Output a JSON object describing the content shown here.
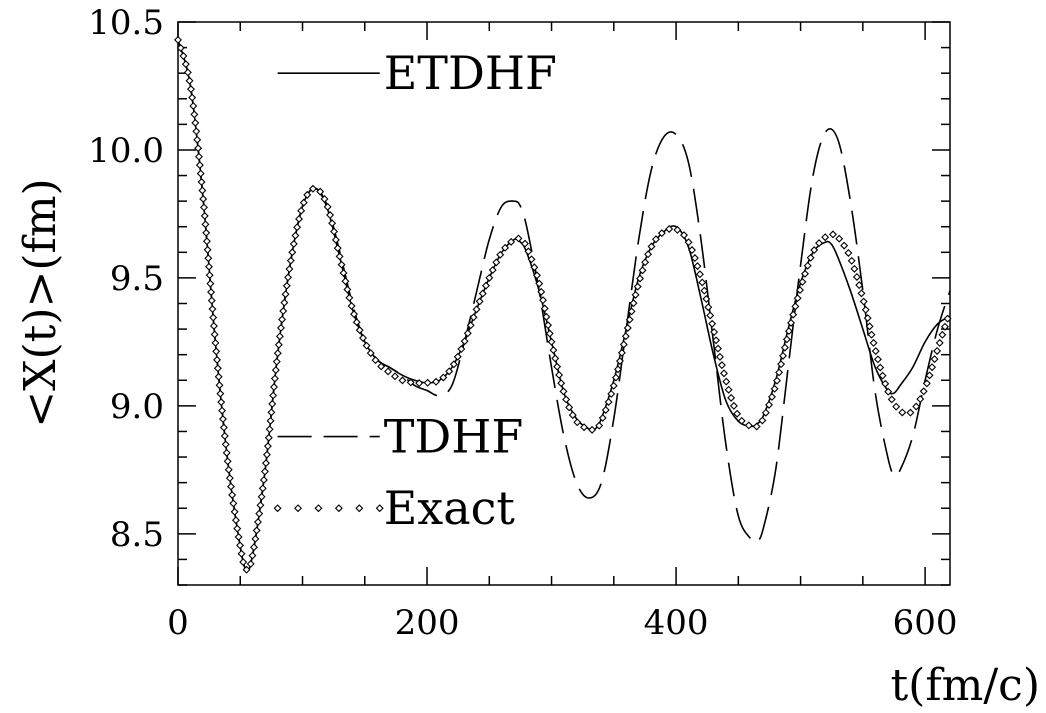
{
  "chart_data": {
    "type": "line",
    "title": "",
    "xlabel": "t(fm/c)",
    "ylabel": "<X(t)>(fm)",
    "xlim": [
      0,
      620
    ],
    "ylim": [
      8.3,
      10.5
    ],
    "xticks": [
      0,
      200,
      400,
      600
    ],
    "xtick_labels": [
      "0",
      "200",
      "400",
      "600"
    ],
    "yticks": [
      8.5,
      9.0,
      9.5,
      10.0,
      10.5
    ],
    "ytick_labels": [
      "8.5",
      "9.0",
      "9.5",
      "10.0",
      "10.5"
    ],
    "grid": false,
    "legend_position": "inside-left",
    "series": [
      {
        "name": "ETDHF",
        "style": "solid",
        "x": [
          0,
          10,
          20,
          30,
          40,
          50,
          55,
          60,
          70,
          80,
          90,
          100,
          110,
          120,
          130,
          140,
          150,
          160,
          170,
          180,
          190,
          200,
          210,
          220,
          230,
          240,
          250,
          260,
          270,
          275,
          280,
          290,
          300,
          310,
          320,
          330,
          335,
          340,
          350,
          360,
          370,
          380,
          390,
          400,
          410,
          420,
          430,
          440,
          450,
          460,
          465,
          470,
          480,
          490,
          500,
          510,
          520,
          525,
          530,
          540,
          550,
          560,
          570,
          575,
          580,
          590,
          600,
          610,
          620
        ],
        "y": [
          10.43,
          10.25,
          9.82,
          9.25,
          8.78,
          8.45,
          8.36,
          8.42,
          8.75,
          9.2,
          9.55,
          9.78,
          9.85,
          9.77,
          9.58,
          9.38,
          9.25,
          9.18,
          9.15,
          9.12,
          9.1,
          9.09,
          9.1,
          9.15,
          9.25,
          9.38,
          9.5,
          9.6,
          9.65,
          9.64,
          9.6,
          9.45,
          9.25,
          9.05,
          8.95,
          8.91,
          8.91,
          8.95,
          9.1,
          9.3,
          9.5,
          9.62,
          9.68,
          9.7,
          9.62,
          9.42,
          9.2,
          9.02,
          8.94,
          8.92,
          8.93,
          8.96,
          9.1,
          9.3,
          9.48,
          9.6,
          9.64,
          9.63,
          9.58,
          9.45,
          9.3,
          9.15,
          9.06,
          9.05,
          9.08,
          9.15,
          9.25,
          9.32,
          9.35
        ]
      },
      {
        "name": "TDHF",
        "style": "dashed",
        "x": [
          0,
          10,
          20,
          30,
          40,
          50,
          55,
          60,
          70,
          80,
          90,
          100,
          110,
          120,
          130,
          140,
          150,
          160,
          170,
          180,
          190,
          200,
          210,
          220,
          230,
          240,
          250,
          260,
          270,
          275,
          280,
          290,
          300,
          310,
          320,
          330,
          340,
          350,
          360,
          370,
          380,
          390,
          400,
          410,
          420,
          430,
          440,
          450,
          460,
          465,
          470,
          480,
          490,
          500,
          510,
          520,
          530,
          540,
          550,
          560,
          570,
          575,
          580,
          590,
          600,
          610,
          620
        ],
        "y": [
          10.43,
          10.25,
          9.82,
          9.25,
          8.78,
          8.45,
          8.36,
          8.42,
          8.75,
          9.2,
          9.55,
          9.78,
          9.85,
          9.78,
          9.6,
          9.4,
          9.25,
          9.18,
          9.15,
          9.12,
          9.08,
          9.06,
          9.04,
          9.08,
          9.25,
          9.45,
          9.65,
          9.78,
          9.8,
          9.78,
          9.7,
          9.45,
          9.15,
          8.88,
          8.7,
          8.64,
          8.7,
          8.95,
          9.3,
          9.65,
          9.92,
          10.05,
          10.06,
          9.95,
          9.65,
          9.25,
          8.85,
          8.57,
          8.48,
          8.47,
          8.52,
          8.75,
          9.15,
          9.55,
          9.9,
          10.07,
          10.04,
          9.8,
          9.45,
          9.05,
          8.8,
          8.73,
          8.75,
          8.88,
          9.1,
          9.3,
          9.45
        ]
      },
      {
        "name": "Exact",
        "style": "diamonds",
        "x": [
          0,
          10,
          20,
          30,
          40,
          50,
          55,
          60,
          70,
          80,
          90,
          100,
          110,
          120,
          130,
          140,
          150,
          160,
          170,
          180,
          190,
          200,
          210,
          220,
          230,
          240,
          250,
          260,
          270,
          275,
          280,
          290,
          300,
          310,
          320,
          330,
          335,
          340,
          350,
          360,
          370,
          380,
          390,
          400,
          410,
          420,
          430,
          440,
          450,
          460,
          465,
          470,
          480,
          490,
          500,
          510,
          520,
          527,
          530,
          540,
          550,
          560,
          570,
          580,
          590,
          600,
          610,
          620
        ],
        "y": [
          10.43,
          10.25,
          9.82,
          9.25,
          8.78,
          8.45,
          8.36,
          8.42,
          8.75,
          9.2,
          9.55,
          9.78,
          9.85,
          9.78,
          9.58,
          9.38,
          9.25,
          9.17,
          9.13,
          9.1,
          9.09,
          9.09,
          9.1,
          9.15,
          9.25,
          9.38,
          9.5,
          9.6,
          9.65,
          9.65,
          9.62,
          9.48,
          9.25,
          9.05,
          8.94,
          8.91,
          8.91,
          8.94,
          9.08,
          9.28,
          9.48,
          9.62,
          9.68,
          9.69,
          9.64,
          9.5,
          9.3,
          9.1,
          8.96,
          8.92,
          8.92,
          8.95,
          9.08,
          9.28,
          9.46,
          9.6,
          9.66,
          9.67,
          9.66,
          9.58,
          9.42,
          9.22,
          9.06,
          8.98,
          8.98,
          9.07,
          9.22,
          9.37
        ]
      }
    ],
    "legend": [
      {
        "series": "ETDHF",
        "label": "ETDHF",
        "y": 10.3,
        "x0": 80,
        "x1": 162
      },
      {
        "series": "TDHF",
        "label": "TDHF",
        "y": 8.88,
        "x0": 80,
        "x1": 162
      },
      {
        "series": "Exact",
        "label": "Exact",
        "y": 8.6,
        "x0": 80,
        "x1": 162
      }
    ]
  }
}
